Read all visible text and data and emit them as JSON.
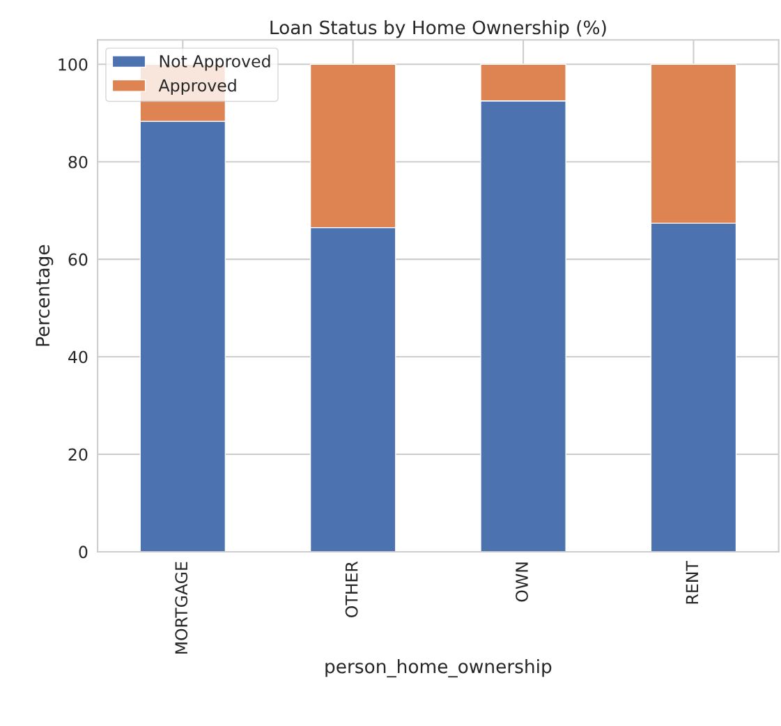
{
  "chart_data": {
    "type": "bar",
    "title": "Loan Status by Home Ownership (%)",
    "xlabel": "person_home_ownership",
    "ylabel": "Percentage",
    "categories": [
      "MORTGAGE",
      "OTHER",
      "OWN",
      "RENT"
    ],
    "series": [
      {
        "name": "Not Approved",
        "color": "#4c72b0",
        "values": [
          88.3,
          66.5,
          92.5,
          67.4
        ]
      },
      {
        "name": "Approved",
        "color": "#dd8452",
        "values": [
          11.7,
          33.5,
          7.5,
          32.6
        ]
      }
    ],
    "stacked": true,
    "ylim": [
      0,
      105
    ],
    "yticks": [
      0,
      20,
      40,
      60,
      80,
      100
    ],
    "grid": true,
    "legend": "top left"
  }
}
